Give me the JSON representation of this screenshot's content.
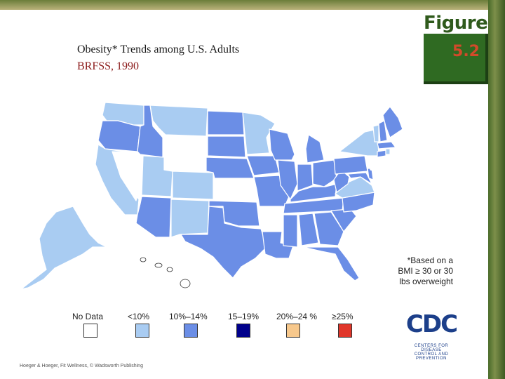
{
  "title": {
    "line1": "Obesity* Trends among U.S. Adults",
    "line2": "BRFSS, 1990"
  },
  "figure": {
    "word": "Figure",
    "number": "5.2"
  },
  "footnote": "*Based on a BMI ≥ 30 or 30 lbs overweight",
  "legend": [
    {
      "label": "No Data",
      "color": "#ffffff"
    },
    {
      "label": "<10%",
      "color": "#a9ccf2"
    },
    {
      "label": "10%–14%",
      "color": "#6b8ee6"
    },
    {
      "label": "15–19%",
      "color": "#00008b"
    },
    {
      "label": "20%–24 %",
      "color": "#f7c88c"
    },
    {
      "label": "≥25%",
      "color": "#e0362a"
    }
  ],
  "logo": {
    "letters": "CDC",
    "sub1": "CENTERS FOR DISEASE",
    "sub2": "CONTROL AND PREVENTION"
  },
  "credit": "Hoeger & Hoeger, Fit Wellness, © Wadsworth Publishing",
  "map_data": {
    "no_data": [
      "Nevada",
      "Wyoming",
      "Kansas",
      "Arkansas",
      "New Jersey",
      "Hawaii"
    ],
    "under_10": [
      "Washington",
      "Montana",
      "California",
      "Utah",
      "Colorado",
      "New Mexico",
      "Minnesota",
      "Virginia",
      "New York",
      "Vermont",
      "Rhode Island",
      "Alaska"
    ],
    "10_to_14": [
      "Oregon",
      "Idaho",
      "Arizona",
      "North Dakota",
      "South Dakota",
      "Nebraska",
      "Oklahoma",
      "Texas",
      "Iowa",
      "Missouri",
      "Louisiana",
      "Wisconsin",
      "Illinois",
      "Michigan",
      "Indiana",
      "Ohio",
      "Kentucky",
      "Tennessee",
      "Mississippi",
      "Alabama",
      "Georgia",
      "Florida",
      "South Carolina",
      "North Carolina",
      "West Virginia",
      "Pennsylvania",
      "Maryland",
      "Delaware",
      "Maine",
      "New Hampshire",
      "Massachusetts",
      "Connecticut"
    ]
  }
}
